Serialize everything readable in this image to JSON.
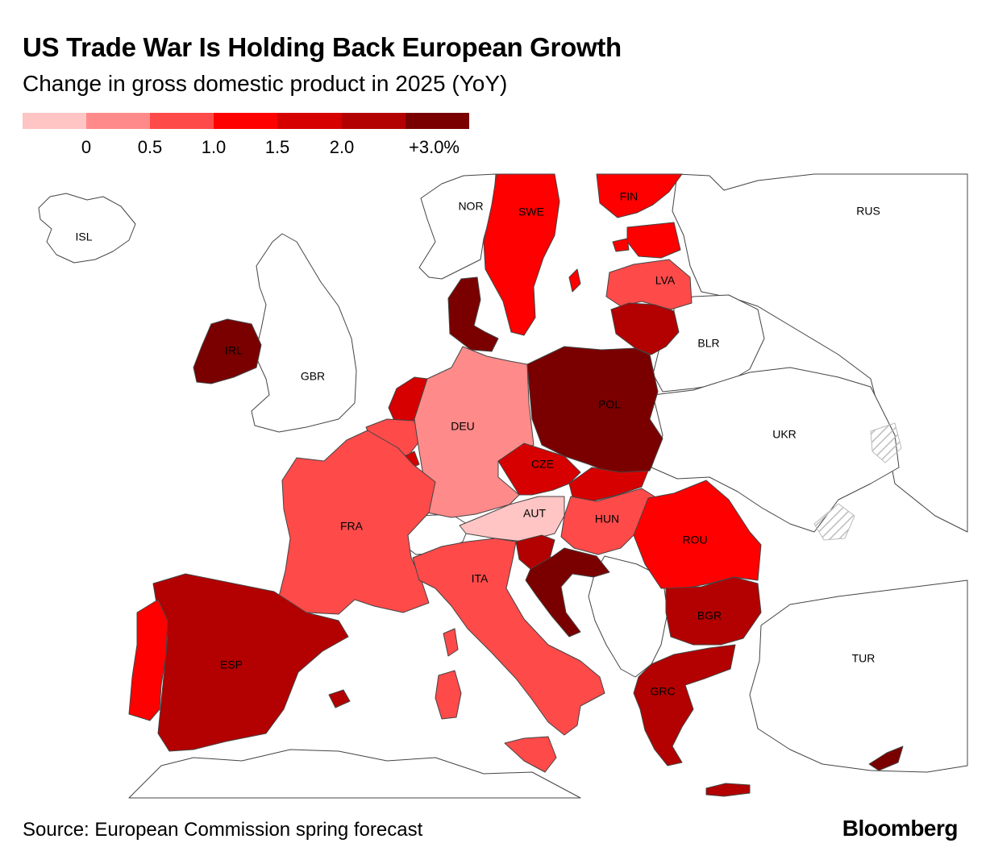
{
  "header": {
    "title": "US Trade War Is Holding Back European Growth",
    "subtitle": "Change in gross domestic product in 2025 (YoY)"
  },
  "legend": {
    "colors": [
      "#ffc4c4",
      "#ff8a8a",
      "#ff4a4a",
      "#ff0000",
      "#d60000",
      "#b30000",
      "#7a0000"
    ],
    "labels": [
      "0",
      "0.5",
      "1.0",
      "1.5",
      "2.0",
      "+3.0%"
    ]
  },
  "map": {
    "colored_countries": [
      {
        "code": "SWE",
        "bin": 3
      },
      {
        "code": "FIN",
        "bin": 3
      },
      {
        "code": "EST",
        "bin": 3
      },
      {
        "code": "LVA",
        "bin": 2
      },
      {
        "code": "LTU",
        "bin": 5
      },
      {
        "code": "DNK",
        "bin": 6
      },
      {
        "code": "IRL",
        "bin": 6
      },
      {
        "code": "NLD",
        "bin": 4
      },
      {
        "code": "BEL",
        "bin": 2
      },
      {
        "code": "LUX",
        "bin": 4
      },
      {
        "code": "DEU",
        "bin": 1
      },
      {
        "code": "POL",
        "bin": 6
      },
      {
        "code": "CZE",
        "bin": 4
      },
      {
        "code": "SVK",
        "bin": 4
      },
      {
        "code": "AUT",
        "bin": 0
      },
      {
        "code": "HUN",
        "bin": 2
      },
      {
        "code": "ROU",
        "bin": 3
      },
      {
        "code": "FRA",
        "bin": 2
      },
      {
        "code": "ITA",
        "bin": 2
      },
      {
        "code": "SVN",
        "bin": 5
      },
      {
        "code": "HRV",
        "bin": 6
      },
      {
        "code": "BGR",
        "bin": 5
      },
      {
        "code": "GRC",
        "bin": 5
      },
      {
        "code": "ESP",
        "bin": 5
      },
      {
        "code": "PRT",
        "bin": 3
      },
      {
        "code": "MLT",
        "bin": 5
      },
      {
        "code": "CYP",
        "bin": 6
      }
    ],
    "labels": [
      "ISL",
      "NOR",
      "SWE",
      "FIN",
      "RUS",
      "LVA",
      "IRL",
      "GBR",
      "BLR",
      "DEU",
      "POL",
      "UKR",
      "CZE",
      "AUT",
      "HUN",
      "FRA",
      "ROU",
      "ITA",
      "BGR",
      "ESP",
      "TUR",
      "GRC"
    ]
  },
  "footer": {
    "source": "Source: European Commission spring forecast",
    "brand": "Bloomberg"
  }
}
